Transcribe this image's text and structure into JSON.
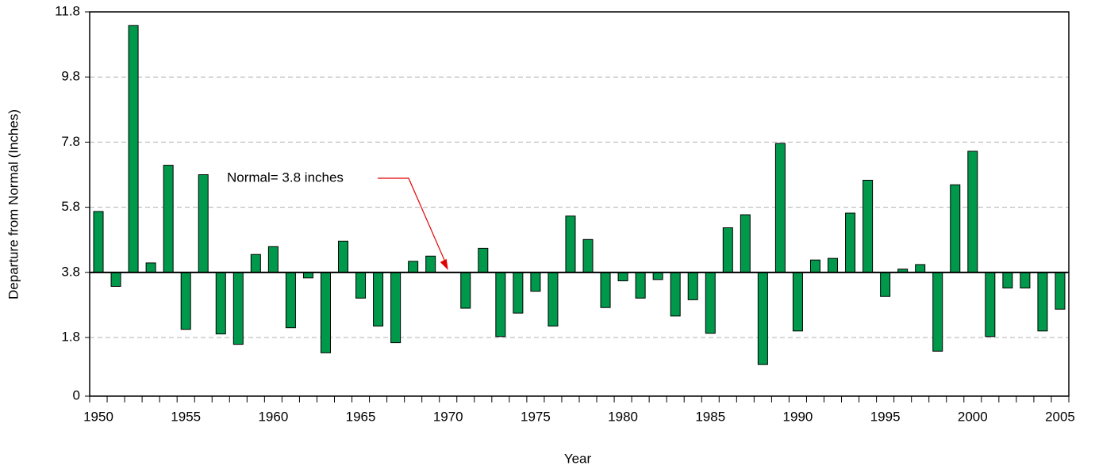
{
  "chart_data": {
    "type": "bar",
    "x_label": "Year",
    "y_label": "Departure from Normal (Inches)",
    "annotation": "Normal= 3.8 inches",
    "baseline": 3.8,
    "color": "#00994c",
    "categories": [
      "1950",
      null,
      null,
      null,
      null,
      "1955",
      null,
      null,
      null,
      null,
      "1960",
      null,
      null,
      null,
      null,
      "1965",
      null,
      null,
      null,
      null,
      "1970",
      null,
      null,
      null,
      null,
      "1975",
      null,
      null,
      null,
      null,
      "1980",
      null,
      null,
      null,
      null,
      "1985",
      null,
      null,
      null,
      null,
      "1990",
      null,
      null,
      null,
      null,
      "1995",
      null,
      null,
      null,
      null,
      "2000",
      null,
      null,
      null,
      null,
      "2005"
    ],
    "values": [
      5.67,
      3.37,
      11.38,
      4.09,
      7.09,
      2.05,
      6.8,
      1.91,
      1.59,
      4.35,
      4.59,
      2.1,
      3.63,
      1.33,
      4.76,
      3.01,
      2.15,
      1.64,
      4.14,
      4.3,
      3.8,
      2.7,
      4.54,
      1.83,
      2.55,
      3.22,
      2.15,
      5.53,
      4.81,
      2.72,
      3.54,
      3.01,
      3.58,
      2.46,
      2.96,
      1.93,
      5.17,
      5.57,
      0.97,
      7.76,
      2.0,
      4.18,
      4.23,
      5.62,
      6.63,
      3.06,
      3.9,
      4.04,
      1.38,
      6.49,
      7.52,
      1.83,
      3.32,
      3.32,
      2.0,
      2.67
    ],
    "ylim": [
      0,
      11.8
    ],
    "yticks": [
      0,
      1.8,
      3.8,
      5.8,
      7.8,
      9.8,
      11.8
    ],
    "grid": true
  }
}
